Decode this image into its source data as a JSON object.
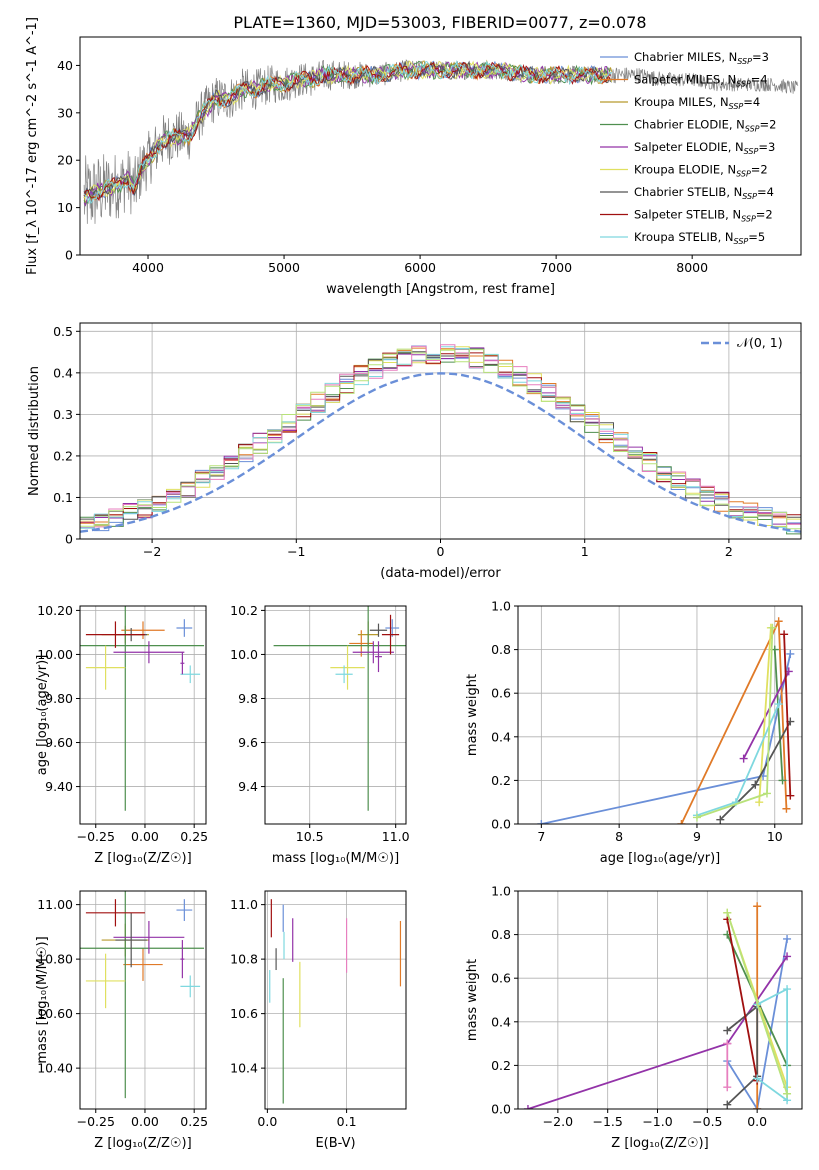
{
  "figure": {
    "title": "PLATE=1360, MJD=53003, FIBERID=0077, z=0.078"
  },
  "colors": {
    "c1": "#6a8fd8",
    "c2": "#e07a28",
    "c3": "#b79a2e",
    "c4": "#4f8f4f",
    "c5": "#9333a8",
    "c6": "#e0e060",
    "c7": "#555555",
    "c8": "#a01010",
    "c9": "#7fd8df",
    "c10": "#e77fbf",
    "c11": "#b8e27a",
    "data": "#808080",
    "grid": "#b0b0b0"
  },
  "chart_data": [
    {
      "id": "spectrum",
      "type": "line",
      "xlabel": "wavelength [Angstrom, rest frame]",
      "ylabel": "Flux [f_λ 10^-17 erg cm^-2 s^-1 A^-1]",
      "xlim": [
        3500,
        8800
      ],
      "ylim": [
        0,
        46
      ],
      "xticks": [
        4000,
        5000,
        6000,
        7000,
        8000
      ],
      "yticks": [
        0,
        10,
        20,
        30,
        40
      ],
      "grid": false,
      "legend_position": "upper right",
      "continuum": [
        [
          3530,
          12
        ],
        [
          3600,
          13
        ],
        [
          3700,
          14
        ],
        [
          3800,
          15
        ],
        [
          3850,
          16
        ],
        [
          3900,
          14
        ],
        [
          3950,
          18
        ],
        [
          4000,
          20
        ],
        [
          4100,
          24
        ],
        [
          4200,
          25
        ],
        [
          4300,
          25
        ],
        [
          4400,
          30
        ],
        [
          4500,
          33
        ],
        [
          4600,
          33
        ],
        [
          4700,
          35
        ],
        [
          4800,
          35
        ],
        [
          4900,
          36
        ],
        [
          5000,
          36
        ],
        [
          5100,
          37
        ],
        [
          5200,
          37
        ],
        [
          5300,
          38
        ],
        [
          5400,
          38
        ],
        [
          5500,
          38
        ],
        [
          5700,
          38
        ],
        [
          5900,
          39
        ],
        [
          6000,
          39
        ],
        [
          6200,
          39
        ],
        [
          6400,
          39
        ],
        [
          6600,
          39
        ],
        [
          6800,
          38
        ],
        [
          7000,
          38
        ],
        [
          7200,
          38
        ],
        [
          7400,
          38
        ],
        [
          7600,
          38
        ],
        [
          7800,
          37
        ],
        [
          8000,
          37
        ],
        [
          8200,
          36
        ],
        [
          8400,
          36
        ],
        [
          8600,
          36
        ],
        [
          8800,
          35
        ]
      ],
      "noise_amp": [
        [
          3530,
          9
        ],
        [
          3800,
          7
        ],
        [
          4000,
          6
        ],
        [
          4400,
          5
        ],
        [
          5000,
          4
        ],
        [
          5500,
          3
        ],
        [
          6000,
          2
        ],
        [
          7000,
          2
        ],
        [
          8000,
          1.5
        ],
        [
          8800,
          1.5
        ]
      ],
      "legend": [
        {
          "label": "Chabrier MILES, N",
          "sub": "SSP",
          "val": "=3",
          "color": "c1"
        },
        {
          "label": "Salpeter MILES, N",
          "sub": "SSP",
          "val": "=4",
          "color": "c2"
        },
        {
          "label": "Kroupa MILES, N",
          "sub": "SSP",
          "val": "=4",
          "color": "c3"
        },
        {
          "label": "Chabrier ELODIE, N",
          "sub": "SSP",
          "val": "=2",
          "color": "c4"
        },
        {
          "label": "Salpeter ELODIE, N",
          "sub": "SSP",
          "val": "=3",
          "color": "c5"
        },
        {
          "label": "Kroupa ELODIE, N",
          "sub": "SSP",
          "val": "=2",
          "color": "c6"
        },
        {
          "label": "Chabrier STELIB, N",
          "sub": "SSP",
          "val": "=4",
          "color": "c7"
        },
        {
          "label": "Salpeter STELIB, N",
          "sub": "SSP",
          "val": "=2",
          "color": "c8"
        },
        {
          "label": "Kroupa STELIB, N",
          "sub": "SSP",
          "val": "=5",
          "color": "c9"
        }
      ]
    },
    {
      "id": "residuals",
      "type": "line",
      "xlabel": "(data-model)/error",
      "ylabel": "Normed distribution",
      "xlim": [
        -2.5,
        2.5
      ],
      "ylim": [
        0,
        0.52
      ],
      "xticks": [
        -2,
        -1,
        0,
        1,
        2
      ],
      "yticks": [
        0.0,
        0.1,
        0.2,
        0.3,
        0.4,
        0.5
      ],
      "grid": true,
      "legend_position": "upper right",
      "legend": {
        "label": "𝒩(0, 1)",
        "color": "c1"
      },
      "bin_width": 0.1,
      "hist_series": [
        "c1",
        "c2",
        "c4",
        "c5",
        "c6",
        "c7",
        "c8",
        "c9",
        "c10",
        "c11"
      ]
    },
    {
      "id": "z_age",
      "type": "scatter",
      "xlabel": "Z [log₁₀(Z/Z☉)]",
      "ylabel": "age  [log₁₀(age/yr)]",
      "xlim": [
        -0.33,
        0.31
      ],
      "ylim": [
        9.23,
        10.22
      ],
      "xticks": [
        -0.25,
        0.0,
        0.25
      ],
      "yticks": [
        9.4,
        9.6,
        9.8,
        10.0,
        10.2
      ],
      "grid": true,
      "points": [
        {
          "x": 0.2,
          "xerr": 0.04,
          "y": 10.12,
          "yerr": 0.04,
          "color": "c1"
        },
        {
          "x": -0.01,
          "xerr": 0.11,
          "y": 10.11,
          "yerr": 0.04,
          "color": "c2"
        },
        {
          "x": -0.1,
          "xerr": 0.12,
          "y": 10.09,
          "yerr": 0.04,
          "color": "c3"
        },
        {
          "x": -0.1,
          "xerr": 0.4,
          "y": 10.04,
          "yerr": 0.75,
          "color": "c4"
        },
        {
          "x": 0.02,
          "xerr": 0.18,
          "y": 10.01,
          "yerr": 0.05,
          "color": "c5"
        },
        {
          "x": -0.2,
          "xerr": 0.1,
          "y": 9.94,
          "yerr": 0.1,
          "color": "c6"
        },
        {
          "x": -0.07,
          "xerr": 0.08,
          "y": 10.09,
          "yerr": 0.03,
          "color": "c7"
        },
        {
          "x": -0.15,
          "xerr": 0.15,
          "y": 10.09,
          "yerr": 0.06,
          "color": "c8"
        },
        {
          "x": 0.23,
          "xerr": 0.05,
          "y": 9.91,
          "yerr": 0.04,
          "color": "c9"
        },
        {
          "x": 0.19,
          "xerr": 0.01,
          "y": 9.96,
          "yerr": 0.05,
          "color": "c5"
        }
      ]
    },
    {
      "id": "mass_age",
      "type": "scatter",
      "xlabel": "mass [log₁₀(M/M☉)]",
      "ylabel": "",
      "xlim": [
        10.24,
        11.06
      ],
      "ylim": [
        9.23,
        10.22
      ],
      "xticks": [
        10.5,
        11.0
      ],
      "yticks": [
        9.4,
        9.6,
        9.8,
        10.0,
        10.2
      ],
      "grid": true,
      "points": [
        {
          "x": 10.98,
          "xerr": 0.04,
          "y": 10.12,
          "yerr": 0.04,
          "color": "c1"
        },
        {
          "x": 10.8,
          "xerr": 0.07,
          "y": 10.05,
          "yerr": 0.06,
          "color": "c2"
        },
        {
          "x": 10.84,
          "xerr": 0.06,
          "y": 10.09,
          "yerr": 0.06,
          "color": "c3"
        },
        {
          "x": 10.84,
          "xerr": 0.55,
          "y": 10.04,
          "yerr": 0.75,
          "color": "c4"
        },
        {
          "x": 10.87,
          "xerr": 0.12,
          "y": 10.01,
          "yerr": 0.05,
          "color": "c5"
        },
        {
          "x": 10.72,
          "xerr": 0.1,
          "y": 9.94,
          "yerr": 0.1,
          "color": "c6"
        },
        {
          "x": 10.9,
          "xerr": 0.05,
          "y": 10.11,
          "yerr": 0.03,
          "color": "c7"
        },
        {
          "x": 10.97,
          "xerr": 0.05,
          "y": 10.09,
          "yerr": 0.09,
          "color": "c8"
        },
        {
          "x": 10.7,
          "xerr": 0.05,
          "y": 9.91,
          "yerr": 0.04,
          "color": "c9"
        },
        {
          "x": 10.9,
          "xerr": 0.02,
          "y": 9.99,
          "yerr": 0.07,
          "color": "c5"
        }
      ]
    },
    {
      "id": "age_weight",
      "type": "line",
      "xlabel": "age  [log₁₀(age/yr)]",
      "ylabel": "mass weight",
      "xlim": [
        6.7,
        10.35
      ],
      "ylim": [
        0,
        1
      ],
      "xticks": [
        7,
        8,
        9,
        10
      ],
      "yticks": [
        0.0,
        0.2,
        0.4,
        0.6,
        0.8,
        1.0
      ],
      "grid": true,
      "series": [
        {
          "color": "c1",
          "points": [
            [
              7.0,
              0.0
            ],
            [
              9.85,
              0.22
            ],
            [
              10.2,
              0.78
            ]
          ]
        },
        {
          "color": "c2",
          "points": [
            [
              8.8,
              0.0
            ],
            [
              10.05,
              0.93
            ],
            [
              10.15,
              0.07
            ]
          ]
        },
        {
          "color": "c4",
          "points": [
            [
              10.0,
              0.8
            ],
            [
              10.1,
              0.2
            ]
          ]
        },
        {
          "color": "c5",
          "points": [
            [
              9.6,
              0.3
            ],
            [
              10.18,
              0.7
            ]
          ]
        },
        {
          "color": "c6",
          "points": [
            [
              9.95,
              0.9
            ],
            [
              9.8,
              0.1
            ]
          ]
        },
        {
          "color": "c7",
          "points": [
            [
              9.3,
              0.02
            ],
            [
              9.75,
              0.18
            ],
            [
              10.2,
              0.47
            ]
          ]
        },
        {
          "color": "c8",
          "points": [
            [
              10.12,
              0.87
            ],
            [
              10.2,
              0.13
            ]
          ]
        },
        {
          "color": "c9",
          "points": [
            [
              9.0,
              0.04
            ],
            [
              9.5,
              0.1
            ],
            [
              10.05,
              0.55
            ]
          ]
        },
        {
          "color": "c11",
          "points": [
            [
              9.0,
              0.03
            ],
            [
              9.9,
              0.14
            ],
            [
              9.97,
              0.9
            ]
          ]
        }
      ]
    },
    {
      "id": "z_mass",
      "type": "scatter",
      "xlabel": "Z [log₁₀(Z/Z☉)]",
      "ylabel": "mass [log₁₀(M/M☉)]",
      "xlim": [
        -0.33,
        0.31
      ],
      "ylim": [
        10.25,
        11.05
      ],
      "xticks": [
        -0.25,
        0.0,
        0.25
      ],
      "yticks": [
        10.4,
        10.6,
        10.8,
        11.0
      ],
      "grid": true,
      "points": [
        {
          "x": 0.2,
          "xerr": 0.04,
          "y": 10.98,
          "yerr": 0.04,
          "color": "c1"
        },
        {
          "x": -0.01,
          "xerr": 0.1,
          "y": 10.78,
          "yerr": 0.06,
          "color": "c2"
        },
        {
          "x": -0.1,
          "xerr": 0.12,
          "y": 10.87,
          "yerr": 0.06,
          "color": "c3"
        },
        {
          "x": -0.1,
          "xerr": 0.4,
          "y": 10.84,
          "yerr": 0.55,
          "color": "c4"
        },
        {
          "x": 0.02,
          "xerr": 0.18,
          "y": 10.88,
          "yerr": 0.06,
          "color": "c5"
        },
        {
          "x": -0.2,
          "xerr": 0.1,
          "y": 10.72,
          "yerr": 0.1,
          "color": "c6"
        },
        {
          "x": -0.07,
          "xerr": 0.08,
          "y": 10.87,
          "yerr": 0.1,
          "color": "c7"
        },
        {
          "x": -0.15,
          "xerr": 0.15,
          "y": 10.97,
          "yerr": 0.05,
          "color": "c8"
        },
        {
          "x": 0.23,
          "xerr": 0.05,
          "y": 10.7,
          "yerr": 0.04,
          "color": "c9"
        },
        {
          "x": 0.19,
          "xerr": 0.01,
          "y": 10.8,
          "yerr": 0.07,
          "color": "c5"
        }
      ]
    },
    {
      "id": "ebv_mass",
      "type": "scatter",
      "xlabel": "E(B-V)",
      "ylabel": "",
      "xlim": [
        -0.003,
        0.175
      ],
      "ylim": [
        10.25,
        11.05
      ],
      "xticks": [
        0.0,
        0.1
      ],
      "yticks": [
        10.4,
        10.6,
        10.8,
        11.0
      ],
      "grid": true,
      "points": [
        {
          "x": 0.003,
          "y": 10.7,
          "yerr": 0.06,
          "color": "c9"
        },
        {
          "x": 0.005,
          "y": 10.95,
          "yerr": 0.07,
          "color": "c8"
        },
        {
          "x": 0.011,
          "y": 10.8,
          "yerr": 0.04,
          "color": "c7"
        },
        {
          "x": 0.02,
          "y": 10.95,
          "yerr": 0.05,
          "color": "c1"
        },
        {
          "x": 0.021,
          "y": 10.85,
          "yerr": 0.05,
          "color": "c9"
        },
        {
          "x": 0.02,
          "y": 10.5,
          "yerr": 0.23,
          "color": "c4"
        },
        {
          "x": 0.032,
          "y": 10.87,
          "yerr": 0.08,
          "color": "c5"
        },
        {
          "x": 0.041,
          "y": 10.67,
          "yerr": 0.12,
          "color": "c6"
        },
        {
          "x": 0.1,
          "y": 10.85,
          "yerr": 0.1,
          "color": "c10"
        },
        {
          "x": 0.168,
          "y": 10.82,
          "yerr": 0.12,
          "color": "c2"
        }
      ]
    },
    {
      "id": "z_weight",
      "type": "line",
      "xlabel": "Z [log₁₀(Z/Z☉)]",
      "ylabel": "mass weight",
      "xlim": [
        -2.4,
        0.45
      ],
      "ylim": [
        0,
        1
      ],
      "xticks": [
        -2.0,
        -1.5,
        -1.0,
        -0.5,
        0.0
      ],
      "yticks": [
        0.0,
        0.2,
        0.4,
        0.6,
        0.8,
        1.0
      ],
      "grid": true,
      "series": [
        {
          "color": "c1",
          "points": [
            [
              -0.3,
              0.22
            ],
            [
              0.0,
              0.0
            ],
            [
              0.3,
              0.78
            ]
          ]
        },
        {
          "color": "c2",
          "points": [
            [
              0.0,
              0.0
            ],
            [
              0.0,
              0.93
            ]
          ]
        },
        {
          "color": "c4",
          "points": [
            [
              -0.3,
              0.8
            ],
            [
              0.3,
              0.2
            ]
          ]
        },
        {
          "color": "c5",
          "points": [
            [
              -2.3,
              0.0
            ],
            [
              -0.3,
              0.3
            ],
            [
              0.3,
              0.7
            ]
          ]
        },
        {
          "color": "c6",
          "points": [
            [
              -0.3,
              0.9
            ],
            [
              0.3,
              0.1
            ]
          ]
        },
        {
          "color": "c7",
          "points": [
            [
              -0.3,
              0.36
            ],
            [
              0.0,
              0.47
            ],
            [
              0.0,
              0.15
            ],
            [
              -0.3,
              0.02
            ]
          ]
        },
        {
          "color": "c8",
          "points": [
            [
              -0.3,
              0.87
            ],
            [
              0.0,
              0.13
            ]
          ]
        },
        {
          "color": "c9",
          "points": [
            [
              0.0,
              0.48
            ],
            [
              0.3,
              0.55
            ],
            [
              0.3,
              0.04
            ],
            [
              0.0,
              0.14
            ]
          ]
        },
        {
          "color": "c10",
          "points": [
            [
              -0.3,
              0.3
            ],
            [
              -0.3,
              0.1
            ]
          ]
        },
        {
          "color": "c11",
          "points": [
            [
              -0.3,
              0.9
            ],
            [
              0.3,
              0.07
            ]
          ]
        }
      ]
    }
  ]
}
